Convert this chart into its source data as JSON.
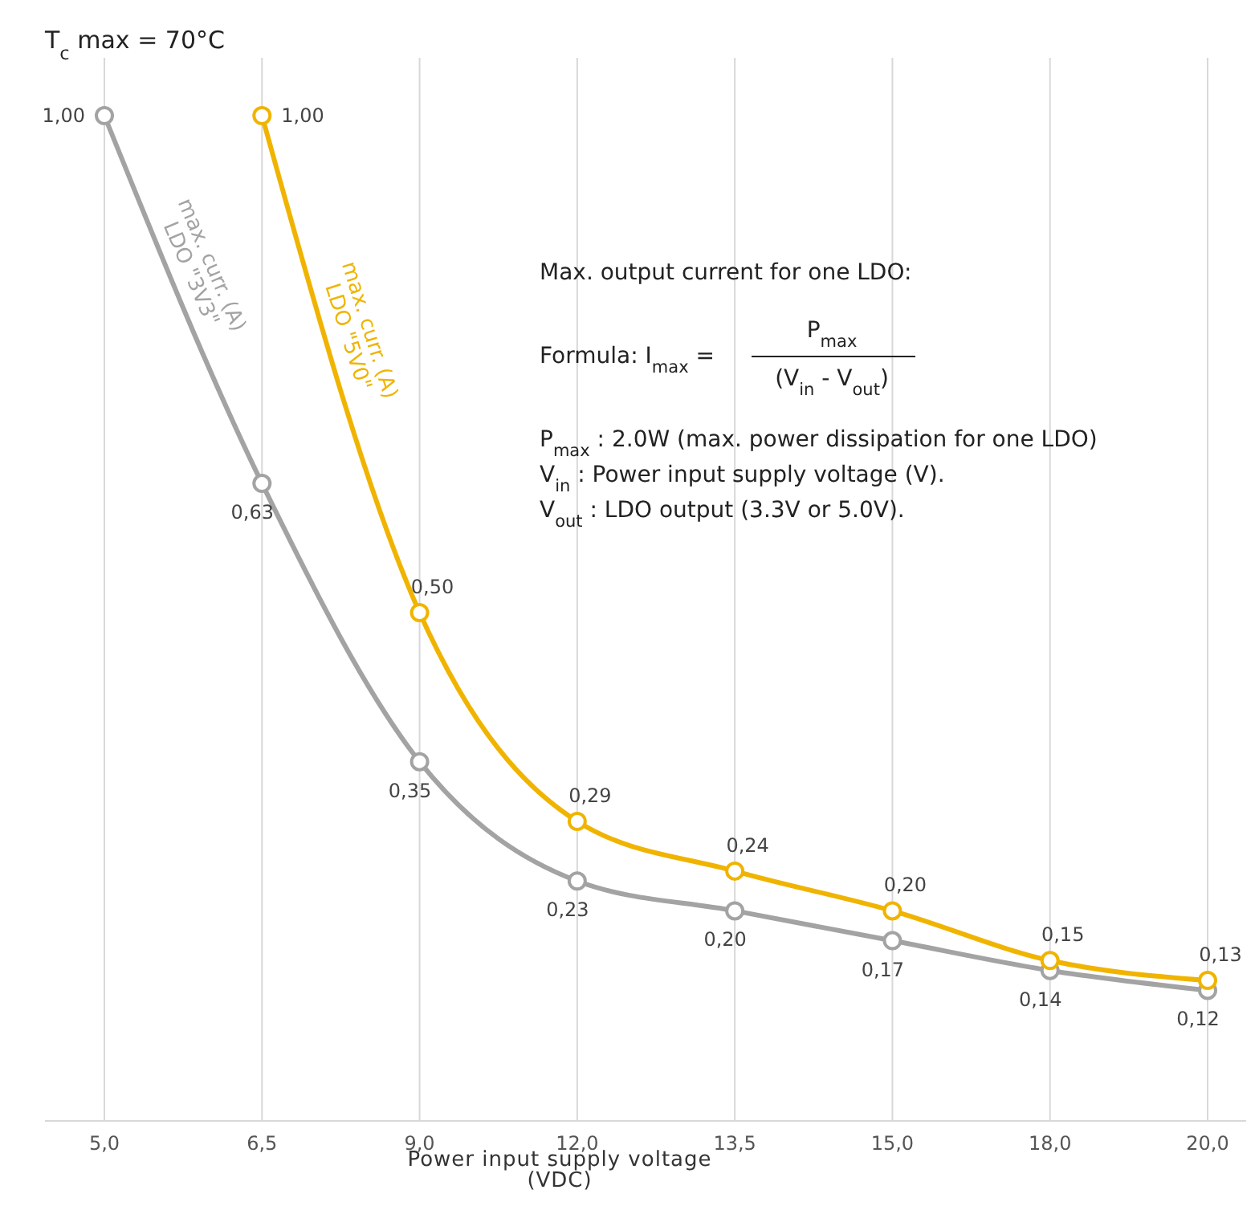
{
  "chart_data": {
    "type": "line",
    "title": "T$_{c}$ max = 70°C",
    "xlabel": "Power input supply voltage (VDC)",
    "categories": [
      "5,0",
      "6,5",
      "9,0",
      "12,0",
      "13,5",
      "15,0",
      "18,0",
      "20,0"
    ],
    "series": [
      {
        "name": "max. curr. (A) LDO \"3V3\"",
        "color": "#a3a3a3",
        "values": [
          1.0,
          0.63,
          0.35,
          0.23,
          0.2,
          0.17,
          0.14,
          0.12
        ],
        "value_labels": [
          "1,00",
          "0,63",
          "0,35",
          "0,23",
          "0,20",
          "0,17",
          "0,14",
          "0,12"
        ]
      },
      {
        "name": "max. curr. (A) LDO \"5V0\"",
        "color": "#f0b400",
        "values": [
          null,
          1.0,
          0.5,
          0.29,
          0.24,
          0.2,
          0.15,
          0.13
        ],
        "value_labels": [
          null,
          "1,00",
          "0,50",
          "0,29",
          "0,24",
          "0,20",
          "0,15",
          "0,13"
        ]
      }
    ],
    "annotations": [
      "Max. output current for one LDO:",
      "Formula:   I$_{max}$ =",
      "P$_{max}$",
      "(V$_{in}$ - V$_{out}$)",
      "P$_{max}$ : 2.0W (max. power dissipation for one LDO)",
      "V$_{in}$ :  Power input supply voltage (V).",
      "V$_{out}$ :  LDO output (3.3V or 5.0V)."
    ],
    "grid": "x",
    "marker": "circle",
    "line_style": "solid"
  }
}
